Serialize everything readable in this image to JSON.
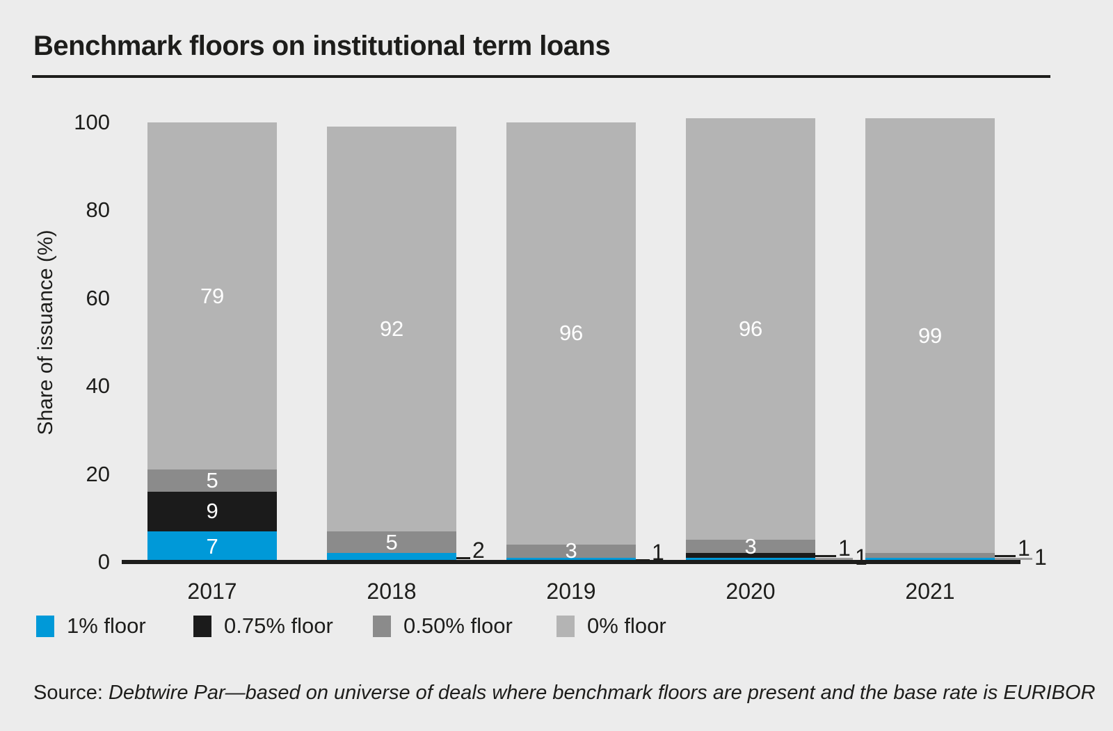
{
  "title": "Benchmark floors on institutional term loans",
  "chart_data": {
    "type": "bar",
    "stacked": true,
    "categories": [
      "2017",
      "2018",
      "2019",
      "2020",
      "2021"
    ],
    "series": [
      {
        "name": "1% floor",
        "color": "#0099d8",
        "values": [
          7,
          2,
          1,
          1,
          1
        ]
      },
      {
        "name": "0.75% floor",
        "color": "#1b1b1b",
        "values": [
          9,
          0,
          0,
          1,
          0
        ]
      },
      {
        "name": "0.50% floor",
        "color": "#8b8b8b",
        "values": [
          5,
          5,
          3,
          3,
          1
        ]
      },
      {
        "name": "0% floor",
        "color": "#b4b4b4",
        "values": [
          79,
          92,
          96,
          96,
          99
        ]
      }
    ],
    "title": "Benchmark floors on institutional term loans",
    "xlabel": "",
    "ylabel": "Share of issuance (%)",
    "yticks": [
      100,
      80,
      60,
      40,
      20,
      0
    ],
    "ylim": [
      0,
      100
    ],
    "grid": false,
    "legend_position": "bottom-left",
    "value_label_color_inside": "#ffffff",
    "value_label_color_outside": "#1d1d1b"
  },
  "colors": {
    "background": "#ececec",
    "text": "#1d1d1b",
    "axis": "#1d1d1b",
    "title_rule": "#1d1d1b",
    "leader_primary": "#1d1d1b",
    "leader_secondary": "#9a9a9a"
  },
  "source": {
    "prefix": "Source:",
    "text": "Debtwire Par—based on universe of deals where benchmark floors are present and the base rate is EURIBOR"
  }
}
